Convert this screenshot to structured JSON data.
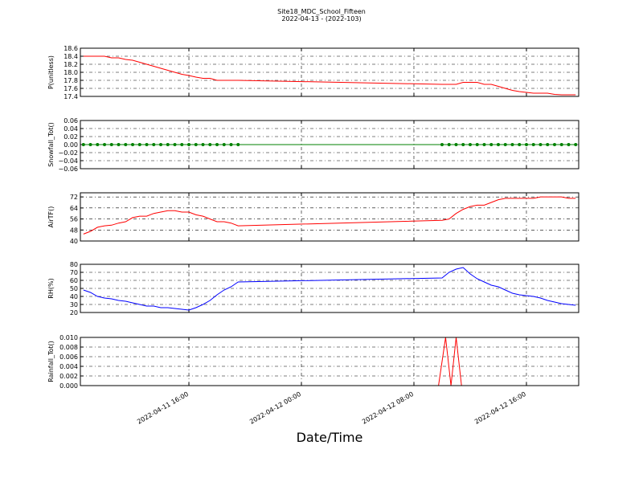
{
  "title": "Site18_MDC_School_Fifteen",
  "subtitle": "2022-04-13 - (2022-103)",
  "x_axis": {
    "label": "Date/Time",
    "lim": [
      "2022-04-11 08:17",
      "2022-04-12 19:43"
    ],
    "ticks": [
      "2022-04-11 16:00",
      "2022-04-12 00:00",
      "2022-04-12 08:00",
      "2022-04-12 16:00"
    ]
  },
  "chart_data": [
    {
      "type": "line",
      "ylabel": "P(unitless)",
      "ylim": [
        17.4,
        18.6
      ],
      "yticks": [
        17.4,
        17.6,
        17.8,
        {
          "value": 18,
          "label": "18.0"
        },
        18.2,
        18.4,
        18.6
      ],
      "x": [
        "2022-04-11 08:30",
        "2022-04-11 09:00",
        "2022-04-11 09:30",
        "2022-04-11 10:00",
        "2022-04-11 10:30",
        "2022-04-11 11:00",
        "2022-04-11 11:30",
        "2022-04-11 12:00",
        "2022-04-11 12:30",
        "2022-04-11 13:00",
        "2022-04-11 13:30",
        "2022-04-11 14:00",
        "2022-04-11 14:30",
        "2022-04-11 15:00",
        "2022-04-11 15:30",
        "2022-04-11 16:00",
        "2022-04-11 16:30",
        "2022-04-11 17:00",
        "2022-04-11 17:30",
        "2022-04-11 18:00",
        "2022-04-11 18:30",
        "2022-04-11 19:00",
        "2022-04-11 19:30",
        "2022-04-12 10:00",
        "2022-04-12 10:30",
        "2022-04-12 11:00",
        "2022-04-12 11:30",
        "2022-04-12 12:00",
        "2022-04-12 12:30",
        "2022-04-12 13:00",
        "2022-04-12 13:30",
        "2022-04-12 14:00",
        "2022-04-12 14:30",
        "2022-04-12 15:00",
        "2022-04-12 15:30",
        "2022-04-12 16:00",
        "2022-04-12 16:30",
        "2022-04-12 17:00",
        "2022-04-12 17:30",
        "2022-04-12 18:00",
        "2022-04-12 18:30",
        "2022-04-12 19:00",
        "2022-04-12 19:30"
      ],
      "color": "#ff0000",
      "values": [
        18.4,
        18.4,
        18.4,
        18.4,
        18.36,
        18.36,
        18.32,
        18.3,
        18.25,
        18.2,
        18.15,
        18.1,
        18.05,
        18.0,
        17.95,
        17.92,
        17.88,
        17.85,
        17.85,
        17.8,
        17.8,
        17.8,
        17.8,
        17.7,
        17.7,
        17.7,
        17.75,
        17.75,
        17.75,
        17.7,
        17.7,
        17.65,
        17.6,
        17.55,
        17.52,
        17.5,
        17.48,
        17.48,
        17.48,
        17.45,
        17.44,
        17.44,
        17.44
      ]
    },
    {
      "type": "line",
      "ylabel": "Snowfall_Tot()",
      "ylim": [
        -0.06,
        0.06
      ],
      "marker": true,
      "yticks": [
        {
          "value": -0.06,
          "label": "−0.06"
        },
        {
          "value": -0.04,
          "label": "−0.04"
        },
        {
          "value": -0.02,
          "label": "−0.02"
        },
        {
          "value": 0,
          "label": "0.00"
        },
        0.02,
        0.04,
        0.06
      ],
      "x": [
        "2022-04-11 08:30",
        "2022-04-11 09:00",
        "2022-04-11 09:30",
        "2022-04-11 10:00",
        "2022-04-11 10:30",
        "2022-04-11 11:00",
        "2022-04-11 11:30",
        "2022-04-11 12:00",
        "2022-04-11 12:30",
        "2022-04-11 13:00",
        "2022-04-11 13:30",
        "2022-04-11 14:00",
        "2022-04-11 14:30",
        "2022-04-11 15:00",
        "2022-04-11 15:30",
        "2022-04-11 16:00",
        "2022-04-11 16:30",
        "2022-04-11 17:00",
        "2022-04-11 17:30",
        "2022-04-11 18:00",
        "2022-04-11 18:30",
        "2022-04-11 19:00",
        "2022-04-11 19:30",
        "2022-04-12 10:00",
        "2022-04-12 10:30",
        "2022-04-12 11:00",
        "2022-04-12 11:30",
        "2022-04-12 12:00",
        "2022-04-12 12:30",
        "2022-04-12 13:00",
        "2022-04-12 13:30",
        "2022-04-12 14:00",
        "2022-04-12 14:30",
        "2022-04-12 15:00",
        "2022-04-12 15:30",
        "2022-04-12 16:00",
        "2022-04-12 16:30",
        "2022-04-12 17:00",
        "2022-04-12 17:30",
        "2022-04-12 18:00",
        "2022-04-12 18:30",
        "2022-04-12 19:00",
        "2022-04-12 19:30"
      ],
      "color": "#008000",
      "values": [
        0,
        0,
        0,
        0,
        0,
        0,
        0,
        0,
        0,
        0,
        0,
        0,
        0,
        0,
        0,
        0,
        0,
        0,
        0,
        0,
        0,
        0,
        0,
        0,
        0,
        0,
        0,
        0,
        0,
        0,
        0,
        0,
        0,
        0,
        0,
        0,
        0,
        0,
        0,
        0,
        0,
        0,
        0
      ]
    },
    {
      "type": "line",
      "ylabel": "AirTF()",
      "ylim": [
        40,
        75
      ],
      "yticks": [
        40,
        48,
        56,
        64,
        72
      ],
      "x": [
        "2022-04-11 08:30",
        "2022-04-11 09:00",
        "2022-04-11 09:30",
        "2022-04-11 10:00",
        "2022-04-11 10:30",
        "2022-04-11 11:00",
        "2022-04-11 11:30",
        "2022-04-11 12:00",
        "2022-04-11 12:30",
        "2022-04-11 13:00",
        "2022-04-11 13:30",
        "2022-04-11 14:00",
        "2022-04-11 14:30",
        "2022-04-11 15:00",
        "2022-04-11 15:30",
        "2022-04-11 16:00",
        "2022-04-11 16:30",
        "2022-04-11 17:00",
        "2022-04-11 17:30",
        "2022-04-11 18:00",
        "2022-04-11 18:30",
        "2022-04-11 19:00",
        "2022-04-11 19:30",
        "2022-04-12 10:00",
        "2022-04-12 10:30",
        "2022-04-12 11:00",
        "2022-04-12 11:30",
        "2022-04-12 12:00",
        "2022-04-12 12:30",
        "2022-04-12 13:00",
        "2022-04-12 13:30",
        "2022-04-12 14:00",
        "2022-04-12 14:30",
        "2022-04-12 15:00",
        "2022-04-12 15:30",
        "2022-04-12 16:00",
        "2022-04-12 16:30",
        "2022-04-12 17:00",
        "2022-04-12 17:30",
        "2022-04-12 18:00",
        "2022-04-12 18:30",
        "2022-04-12 19:00",
        "2022-04-12 19:30"
      ],
      "color": "#ff0000",
      "values": [
        45,
        47,
        50,
        51,
        51.5,
        53,
        54,
        57,
        58,
        58,
        60,
        61,
        62,
        62,
        61,
        61,
        59,
        58,
        56,
        54,
        54,
        53,
        51,
        55,
        56,
        60,
        63,
        65,
        66,
        66,
        68,
        70,
        71,
        71,
        71,
        71,
        71,
        72,
        72,
        72,
        72,
        71,
        71
      ]
    },
    {
      "type": "line",
      "ylabel": "RH(%)",
      "ylim": [
        20,
        80
      ],
      "yticks": [
        20,
        30,
        40,
        50,
        60,
        70,
        80
      ],
      "x": [
        "2022-04-11 08:30",
        "2022-04-11 09:00",
        "2022-04-11 09:30",
        "2022-04-11 10:00",
        "2022-04-11 10:30",
        "2022-04-11 11:00",
        "2022-04-11 11:30",
        "2022-04-11 12:00",
        "2022-04-11 12:30",
        "2022-04-11 13:00",
        "2022-04-11 13:30",
        "2022-04-11 14:00",
        "2022-04-11 14:30",
        "2022-04-11 15:00",
        "2022-04-11 15:30",
        "2022-04-11 16:00",
        "2022-04-11 16:30",
        "2022-04-11 17:00",
        "2022-04-11 17:30",
        "2022-04-11 18:00",
        "2022-04-11 18:30",
        "2022-04-11 19:00",
        "2022-04-11 19:30",
        "2022-04-12 10:00",
        "2022-04-12 10:30",
        "2022-04-12 11:00",
        "2022-04-12 11:30",
        "2022-04-12 12:00",
        "2022-04-12 12:30",
        "2022-04-12 13:00",
        "2022-04-12 13:30",
        "2022-04-12 14:00",
        "2022-04-12 14:30",
        "2022-04-12 15:00",
        "2022-04-12 15:30",
        "2022-04-12 16:00",
        "2022-04-12 16:30",
        "2022-04-12 17:00",
        "2022-04-12 17:30",
        "2022-04-12 18:00",
        "2022-04-12 18:30",
        "2022-04-12 19:00",
        "2022-04-12 19:30"
      ],
      "color": "#0000ff",
      "values": [
        48,
        45,
        40,
        38,
        37,
        35,
        34,
        32,
        30,
        28,
        28,
        26,
        26,
        25,
        24,
        23,
        26,
        30,
        35,
        42,
        48,
        52,
        58,
        63,
        70,
        74,
        76,
        68,
        62,
        58,
        54,
        52,
        48,
        44,
        42,
        41,
        40,
        38,
        35,
        33,
        31,
        30,
        29
      ]
    },
    {
      "type": "line",
      "ylabel": "Rainfall_Tot()",
      "ylim": [
        0,
        0.01
      ],
      "yticks": [
        {
          "value": 0,
          "label": "0.000"
        },
        0.002,
        0.004,
        0.006,
        0.008,
        {
          "value": 0.01,
          "label": "0.010"
        }
      ],
      "x": [
        "2022-04-11 08:30",
        "2022-04-12 09:45",
        "2022-04-12 10:15",
        "2022-04-12 10:38",
        "2022-04-12 11:00",
        "2022-04-12 11:23",
        "2022-04-12 19:30"
      ],
      "color": "#ff0000",
      "values": [
        0,
        0,
        0.01,
        0,
        0.01,
        0,
        0
      ]
    }
  ]
}
